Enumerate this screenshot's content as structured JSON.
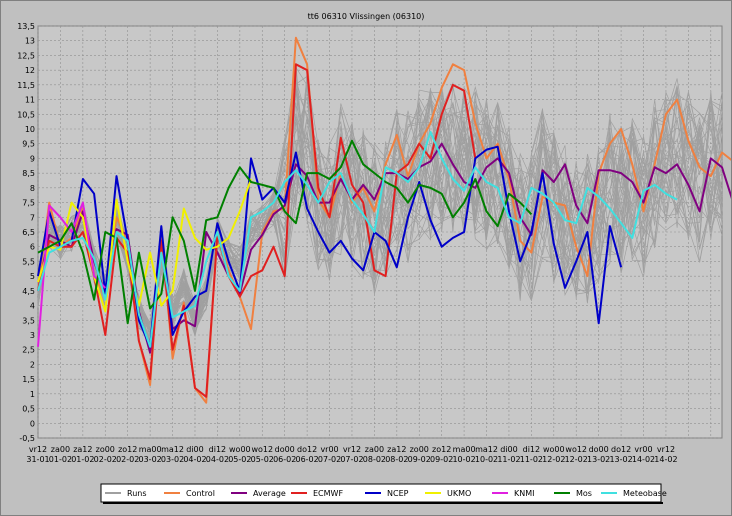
{
  "chart_data": {
    "type": "line",
    "title": "tt6  06310 Vlissingen (06310)",
    "ylim": [
      -0.5,
      13.5
    ],
    "y_ticks": [
      "13,5",
      "13",
      "12,5",
      "12",
      "11,5",
      "11",
      "10,5",
      "10",
      "9,5",
      "9",
      "8,5",
      "8",
      "7,5",
      "7",
      "6,5",
      "6",
      "5,5",
      "5",
      "4,5",
      "4",
      "3,5",
      "3",
      "2,5",
      "2",
      "1,5",
      "1",
      "0,5",
      "0",
      "-0,5"
    ],
    "x_tick_labels_top": [
      "vr12",
      "za00",
      "za12",
      "zo00",
      "zo12",
      "ma00",
      "ma12",
      "di00",
      "di12",
      "wo00",
      "wo12",
      "do00",
      "do12",
      "vr00",
      "vr12",
      "za00",
      "za12",
      "zo00",
      "zo12",
      "ma00",
      "ma12",
      "di00",
      "di12",
      "wo00",
      "wo12",
      "do00",
      "do12",
      "vr00",
      "vr12"
    ],
    "x_tick_labels_bottom": [
      "31-01",
      "01-02",
      "01-02",
      "02-02",
      "02-02",
      "03-02",
      "03-02",
      "04-02",
      "04-02",
      "05-02",
      "05-02",
      "06-02",
      "06-02",
      "07-02",
      "07-02",
      "08-02",
      "08-02",
      "09-02",
      "09-02",
      "10-02",
      "10-02",
      "11-02",
      "11-02",
      "12-02",
      "12-02",
      "13-02",
      "13-02",
      "14-02",
      "14-02"
    ],
    "x_step_hours": 6,
    "grid": true,
    "legend_position": "bottom",
    "series": [
      {
        "name": "Runs",
        "color": "#a0a0a0"
      },
      {
        "name": "Control",
        "color": "#f08040",
        "values": [
          4.5,
          7.5,
          6.0,
          6.3,
          7.3,
          5.0,
          4.3,
          7.0,
          6.2,
          2.8,
          1.3,
          6.5,
          2.2,
          4.1,
          1.2,
          0.7,
          6.5,
          5.2,
          4.3,
          3.2,
          6.5,
          7.2,
          7.3,
          13.1,
          12.2,
          7.6,
          7.0,
          8.5,
          7.5,
          8.0,
          7.2,
          8.8,
          9.8,
          8.4,
          9.5,
          10.2,
          11.4,
          12.2,
          12.0,
          10.2,
          9.0,
          9.5,
          8.3,
          6.2,
          5.8,
          7.7,
          7.5,
          7.4,
          6.0,
          5.0,
          8.5,
          9.5,
          10.0,
          8.8,
          7.2,
          8.8,
          10.5,
          11.0,
          9.6,
          8.7,
          8.4,
          9.2,
          8.9,
          9.4
        ]
      },
      {
        "name": "Average",
        "color": "#800080",
        "values": [
          4.5,
          6.4,
          6.2,
          6.0,
          7.2,
          5.5,
          4.4,
          6.6,
          6.4,
          3.8,
          2.4,
          6.2,
          3.2,
          3.5,
          3.3,
          6.5,
          5.8,
          5.0,
          4.4,
          5.9,
          6.4,
          7.1,
          7.4,
          8.8,
          8.4,
          7.5,
          7.5,
          8.3,
          7.6,
          8.1,
          7.6,
          8.5,
          8.5,
          8.3,
          8.7,
          8.9,
          9.5,
          8.8,
          8.2,
          8.0,
          8.7,
          9.0,
          8.5,
          7.0,
          6.4,
          8.6,
          8.2,
          8.8,
          7.4,
          6.8,
          8.6,
          8.6,
          8.5,
          8.2,
          7.5,
          8.7,
          8.5,
          8.8,
          8.1,
          7.2,
          9.0,
          8.7,
          7.5
        ]
      },
      {
        "name": "ECMWF",
        "color": "#e02020",
        "values": [
          4.5,
          6.2,
          6.0,
          6.0,
          6.5,
          5.0,
          3.0,
          6.3,
          5.8,
          2.8,
          1.5,
          6.2,
          2.5,
          4.0,
          1.2,
          0.9,
          6.4,
          5.0,
          4.3,
          5.0,
          5.2,
          6.0,
          5.0,
          12.2,
          12.0,
          8.0,
          7.0,
          9.7,
          8.1,
          7.5,
          5.2,
          5.0,
          8.5,
          8.8,
          9.5,
          9.0,
          10.5,
          11.5,
          11.3,
          9.0
        ]
      },
      {
        "name": "NCEP",
        "color": "#0000c8",
        "values": [
          5.0,
          7.2,
          6.0,
          6.2,
          8.3,
          7.8,
          4.4,
          8.4,
          6.2,
          3.5,
          2.6,
          6.7,
          3.0,
          3.8,
          4.3,
          4.5,
          6.8,
          5.5,
          4.5,
          9.0,
          7.6,
          8.0,
          7.5,
          9.2,
          7.3,
          6.5,
          5.8,
          6.2,
          5.6,
          5.2,
          6.5,
          6.2,
          5.3,
          7.0,
          8.2,
          6.9,
          6.0,
          6.3,
          6.5,
          9.0,
          9.3,
          9.4,
          7.2,
          5.5,
          6.5,
          8.5,
          6.1,
          4.6,
          5.5,
          6.5,
          3.4,
          6.7,
          5.3
        ]
      },
      {
        "name": "UKMO",
        "color": "#f0f000",
        "values": [
          4.8,
          6.0,
          5.9,
          7.5,
          7.0,
          5.0,
          3.8,
          7.6,
          5.5,
          4.0,
          5.8,
          4.0,
          4.5,
          7.3,
          6.3,
          5.9,
          6.0,
          6.3,
          7.2,
          8.3
        ]
      },
      {
        "name": "KNMI",
        "color": "#e020e0",
        "values": [
          2.6,
          7.4,
          7.0,
          6.5,
          7.5,
          5.0,
          4.6
        ]
      },
      {
        "name": "Mos",
        "color": "#008000",
        "values": [
          5.8,
          6.0,
          6.2,
          6.8,
          5.8,
          4.2,
          6.5,
          6.3,
          3.4,
          5.8,
          3.9,
          4.4,
          7.0,
          6.2,
          4.5,
          6.9,
          7.0,
          8.0,
          8.7,
          8.2,
          8.1,
          8.0,
          7.2,
          6.8,
          8.5,
          8.5,
          8.3,
          8.7,
          9.6,
          8.8,
          8.5,
          8.2,
          8.0,
          7.5,
          8.1,
          8.0,
          7.8,
          7.0,
          7.5,
          8.3,
          7.2,
          6.7,
          7.8,
          7.5,
          7.1
        ]
      },
      {
        "name": "Meteobase",
        "color": "#40e0e0",
        "values": [
          4.5,
          5.8,
          6.0,
          6.2,
          6.3,
          5.6,
          4.2,
          6.5,
          6.2,
          3.7,
          2.6,
          5.8,
          3.6,
          3.8,
          4.0,
          5.5,
          6.5,
          5.0,
          4.5,
          7.0,
          7.2,
          7.5,
          8.2,
          8.6,
          8.1,
          7.5,
          8.2,
          8.5,
          7.6,
          7.1,
          6.5,
          8.7,
          8.5,
          8.2,
          8.7,
          9.9,
          9.0,
          8.3,
          7.9,
          8.7,
          8.2,
          8.0,
          7.0,
          6.8,
          8.0,
          7.8,
          7.5,
          6.9,
          6.8,
          8.0,
          7.7,
          7.3,
          6.8,
          6.3,
          7.9,
          8.1,
          7.8,
          7.6
        ]
      }
    ]
  }
}
